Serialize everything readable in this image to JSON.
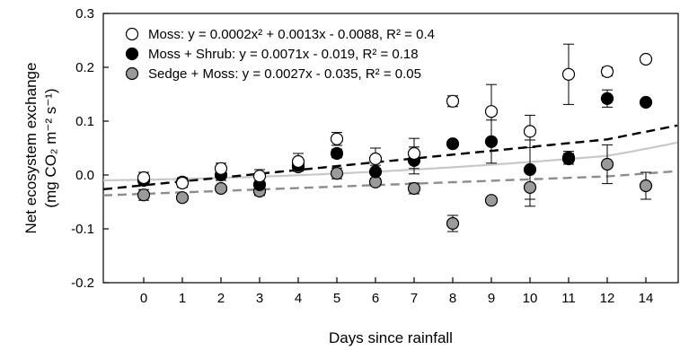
{
  "chart_data": {
    "type": "scatter",
    "xlabel": "Days since rainfall",
    "ylabel_main": "Net ecosystem exchange",
    "ylabel_unit": "(mg CO₂ m⁻² s⁻¹)",
    "ylim": [
      -0.2,
      0.3
    ],
    "yticks": [
      -0.2,
      -0.1,
      0.0,
      0.1,
      0.2,
      0.3
    ],
    "ytick_labels": [
      "-0.2",
      "-0.1",
      "0.0",
      "0.1",
      "0.2",
      "0.3"
    ],
    "x": [
      0,
      1,
      2,
      3,
      4,
      5,
      6,
      7,
      8,
      9,
      10,
      11,
      12,
      14
    ],
    "xtick_labels": [
      "0",
      "1",
      "2",
      "3",
      "4",
      "5",
      "6",
      "7",
      "8",
      "9",
      "10",
      "11",
      "12",
      "14"
    ],
    "series": [
      {
        "name": "Moss",
        "equation": "y = 0.0002x² + 0.0013x - 0.0088, R² = 0.4",
        "marker": "open",
        "color": "#000000",
        "fill": "#ffffff",
        "values": [
          -0.005,
          -0.015,
          0.012,
          -0.002,
          0.025,
          0.067,
          0.03,
          0.04,
          0.137,
          0.118,
          0.081,
          0.187,
          0.192,
          0.215
        ],
        "errors": [
          0.01,
          0.008,
          0.01,
          0.012,
          0.015,
          0.012,
          0.02,
          0.028,
          0.01,
          0.05,
          0.03,
          0.056,
          0.008,
          0.006
        ],
        "trend": {
          "kind": "quadratic",
          "coeffs": [
            -0.0088,
            0.0013,
            0.0002
          ],
          "style": "solid",
          "color": "#c8c8c8"
        }
      },
      {
        "name": "Moss + Shrub",
        "equation": "y = 0.0071x - 0.019, R² = 0.18",
        "marker": "filled",
        "color": "#000000",
        "fill": "#000000",
        "values": [
          -0.01,
          -0.013,
          0.0,
          -0.018,
          0.018,
          0.04,
          0.006,
          0.027,
          0.058,
          0.062,
          0.01,
          0.03,
          0.142,
          0.135
        ],
        "errors": [
          0.008,
          0.008,
          0.01,
          0.012,
          0.01,
          0.008,
          0.012,
          0.025,
          0.006,
          0.04,
          0.055,
          0.01,
          0.016,
          0.005
        ],
        "trend": {
          "kind": "linear",
          "coeffs": [
            -0.019,
            0.0071
          ],
          "style": "dashed",
          "color": "#000000"
        }
      },
      {
        "name": "Sedge + Moss",
        "equation": "y = 0.0027x - 0.035, R² = 0.05",
        "marker": "gray",
        "color": "#000000",
        "fill": "#9a9a9a",
        "values": [
          -0.037,
          -0.042,
          -0.025,
          -0.03,
          0.015,
          0.003,
          -0.013,
          -0.025,
          -0.09,
          -0.047,
          -0.023,
          0.032,
          0.02,
          -0.02
        ],
        "errors": [
          0.01,
          0.006,
          0.006,
          0.008,
          0.008,
          0.01,
          0.006,
          0.01,
          0.015,
          0.005,
          0.035,
          0.012,
          0.036,
          0.025
        ],
        "trend": {
          "kind": "linear",
          "coeffs": [
            -0.035,
            0.0027
          ],
          "style": "dashed",
          "color": "#8c8c8c"
        }
      }
    ],
    "legend_position": "top-left",
    "grid": false
  }
}
